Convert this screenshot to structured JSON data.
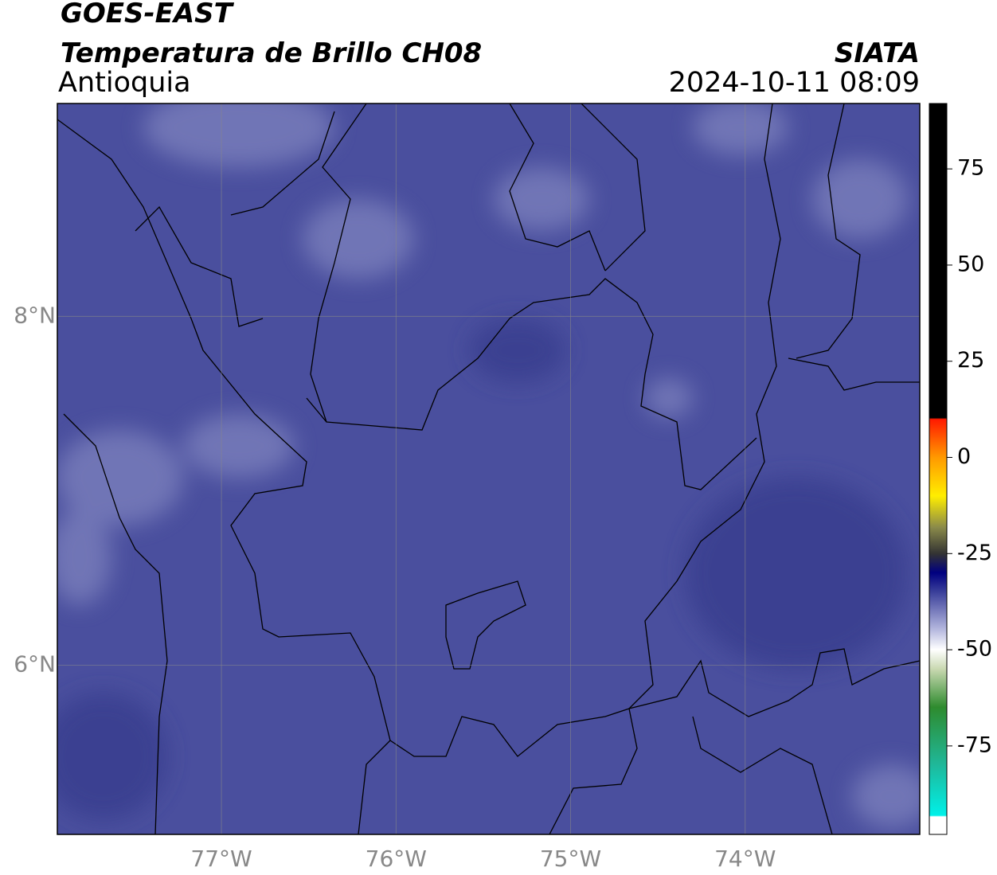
{
  "header": {
    "line1": "GOES-EAST",
    "line2": "Temperatura de Brillo CH08",
    "region": "Antioquia",
    "source": "SIATA",
    "datetime": "2024-10-11 08:09"
  },
  "map": {
    "xlim": [
      -77.94,
      -73.0
    ],
    "ylim": [
      5.03,
      9.22
    ],
    "grid": true,
    "xticks": [
      {
        "value": -77,
        "label": "77°W"
      },
      {
        "value": -76,
        "label": "76°W"
      },
      {
        "value": -75,
        "label": "75°W"
      },
      {
        "value": -74,
        "label": "74°W"
      }
    ],
    "yticks": [
      {
        "value": 8,
        "label": "8°N"
      },
      {
        "value": 6,
        "label": "6°N"
      }
    ]
  },
  "colorbar": {
    "lim": [
      -98,
      92
    ],
    "ticks": [
      75,
      50,
      25,
      0,
      -25,
      -50,
      -75
    ]
  }
}
